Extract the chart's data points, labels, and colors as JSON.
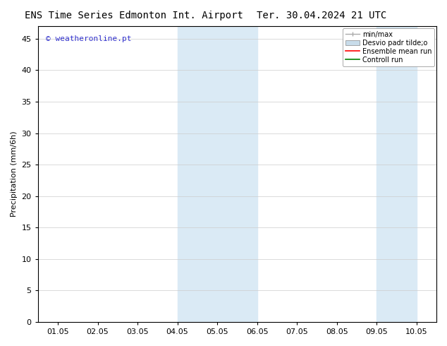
{
  "title_left": "ENS Time Series Edmonton Int. Airport",
  "title_right": "Ter. 30.04.2024 21 UTC",
  "ylabel": "Precipitation (mm/6h)",
  "xlabel_ticks": [
    "01.05",
    "02.05",
    "03.05",
    "04.05",
    "05.05",
    "06.05",
    "07.05",
    "08.05",
    "09.05",
    "10.05"
  ],
  "xlabel_tick_positions": [
    1,
    2,
    3,
    4,
    5,
    6,
    7,
    8,
    9,
    10
  ],
  "ylim": [
    0,
    47
  ],
  "yticks": [
    0,
    5,
    10,
    15,
    20,
    25,
    30,
    35,
    40,
    45
  ],
  "background_color": "#ffffff",
  "plot_bg_color": "#ffffff",
  "shaded_block1_x0": 4.0,
  "shaded_block1_x1": 6.0,
  "shaded_block2_x0": 9.0,
  "shaded_block2_x1": 10.0,
  "shaded_color": "#daeaf5",
  "xlim": [
    0.5,
    10.5
  ],
  "watermark_text": "© weatheronline.pt",
  "watermark_color": "#3333cc",
  "legend_labels": [
    "min/max",
    "Desvio padr tilde;o",
    "Ensemble mean run",
    "Controll run"
  ],
  "legend_colors_line": [
    "#aaaaaa",
    "#c8dcea",
    "#ff0000",
    "#008000"
  ],
  "tick_fontsize": 8,
  "label_fontsize": 8,
  "title_fontsize": 10,
  "grid_color": "#cccccc",
  "border_color": "#000000",
  "fig_width": 6.34,
  "fig_height": 4.9,
  "dpi": 100
}
